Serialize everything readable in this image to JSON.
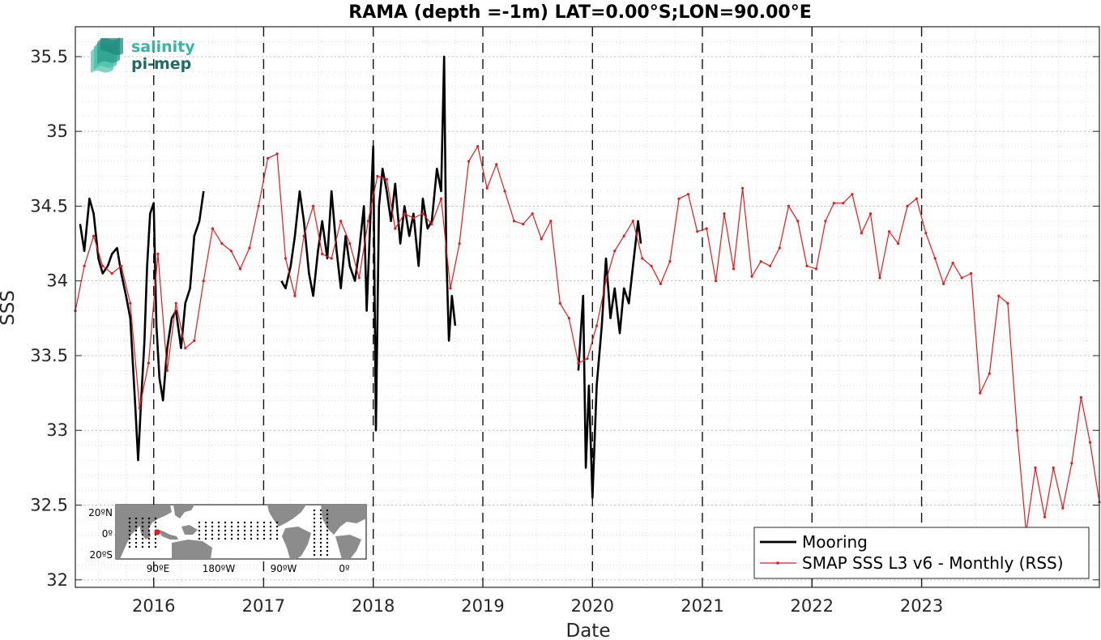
{
  "chart_data": {
    "type": "line",
    "title": "RAMA (depth =-1m) LAT=0.00°S;LON=90.00°E",
    "xlabel": "Date",
    "ylabel": "SSS",
    "xlim": [
      "2015-04-15",
      "2024-08-15"
    ],
    "ylim": [
      31.95,
      35.7
    ],
    "yticks": [
      32,
      32.5,
      33,
      33.5,
      34,
      34.5,
      35,
      35.5
    ],
    "ytick_labels": [
      "32",
      "32.5",
      "33",
      "33.5",
      "34",
      "34.5",
      "35",
      "35.5"
    ],
    "xticks": [
      "2016-01-01",
      "2017-01-01",
      "2018-01-01",
      "2019-01-01",
      "2020-01-01",
      "2021-01-01",
      "2022-01-01",
      "2023-01-01"
    ],
    "xtick_labels": [
      "2016",
      "2017",
      "2018",
      "2019",
      "2020",
      "2021",
      "2022",
      "2023"
    ],
    "year_lines": [
      "2016-01-01",
      "2017-01-01",
      "2018-01-01",
      "2019-01-01",
      "2020-01-01",
      "2021-01-01",
      "2022-01-01",
      "2023-01-01"
    ],
    "grid": true,
    "legend_position": "bottom-right",
    "series": [
      {
        "name": "Mooring",
        "color": "#000000",
        "style": "thick-line",
        "segments": [
          {
            "x": [
              "2015-05-01",
              "2015-05-15",
              "2015-06-01",
              "2015-06-15",
              "2015-07-01",
              "2015-07-15",
              "2015-08-01",
              "2015-08-15",
              "2015-09-01",
              "2015-09-15",
              "2015-10-01",
              "2015-10-15",
              "2015-11-01",
              "2015-11-10",
              "2015-11-20",
              "2015-12-01",
              "2015-12-10",
              "2015-12-20",
              "2016-01-01",
              "2016-01-10",
              "2016-01-20",
              "2016-02-01",
              "2016-02-15",
              "2016-03-01",
              "2016-03-15",
              "2016-04-01",
              "2016-04-15",
              "2016-05-01",
              "2016-05-15",
              "2016-06-01",
              "2016-06-15"
            ],
            "y": [
              34.38,
              34.2,
              34.55,
              34.45,
              34.15,
              34.05,
              34.1,
              34.18,
              34.22,
              34.05,
              33.9,
              33.75,
              33.15,
              32.8,
              33.2,
              33.6,
              34.1,
              34.45,
              34.52,
              33.7,
              33.35,
              33.2,
              33.55,
              33.75,
              33.8,
              33.55,
              33.85,
              33.95,
              34.3,
              34.4,
              34.6
            ]
          },
          {
            "x": [
              "2017-03-01",
              "2017-03-15",
              "2017-04-01",
              "2017-04-15",
              "2017-05-01",
              "2017-05-15",
              "2017-06-01",
              "2017-06-15",
              "2017-07-01",
              "2017-07-15",
              "2017-08-01",
              "2017-08-15",
              "2017-09-01",
              "2017-09-15",
              "2017-10-01",
              "2017-10-15",
              "2017-11-01",
              "2017-11-15",
              "2017-12-01",
              "2017-12-10",
              "2017-12-20",
              "2018-01-01",
              "2018-01-10",
              "2018-01-20",
              "2018-02-01",
              "2018-02-15",
              "2018-03-01",
              "2018-03-15",
              "2018-04-01",
              "2018-04-15",
              "2018-05-01",
              "2018-05-15",
              "2018-06-01",
              "2018-06-15",
              "2018-07-01",
              "2018-07-15",
              "2018-08-01",
              "2018-08-15",
              "2018-08-25",
              "2018-09-01",
              "2018-09-10",
              "2018-09-20",
              "2018-10-01"
            ],
            "y": [
              34.0,
              33.95,
              34.1,
              34.3,
              34.6,
              34.4,
              34.05,
              33.9,
              34.2,
              34.4,
              34.15,
              34.6,
              34.2,
              33.95,
              34.3,
              34.1,
              34.0,
              34.2,
              34.5,
              33.8,
              34.3,
              34.9,
              33.0,
              34.5,
              34.75,
              34.6,
              34.4,
              34.65,
              34.25,
              34.5,
              34.3,
              34.45,
              34.1,
              34.55,
              34.35,
              34.4,
              34.75,
              34.6,
              35.5,
              34.2,
              33.6,
              33.9,
              33.7
            ]
          },
          {
            "x": [
              "2019-11-15",
              "2019-12-01",
              "2019-12-10",
              "2019-12-20",
              "2020-01-01",
              "2020-01-15",
              "2020-02-01",
              "2020-02-15",
              "2020-03-01",
              "2020-03-15",
              "2020-04-01",
              "2020-04-15",
              "2020-05-01",
              "2020-05-15",
              "2020-06-01",
              "2020-06-10"
            ],
            "y": [
              33.4,
              33.9,
              32.75,
              33.3,
              32.55,
              33.3,
              33.7,
              34.15,
              33.75,
              33.95,
              33.65,
              33.95,
              33.85,
              34.1,
              34.4,
              34.25
            ]
          }
        ]
      },
      {
        "name": "SMAP SSS L3 v6 - Monthly (RSS)",
        "color": "#e41a1c",
        "style": "thin-line-with-dots",
        "x": [
          "2015-04-15",
          "2015-05-15",
          "2015-06-15",
          "2015-07-15",
          "2015-08-15",
          "2015-09-15",
          "2015-10-15",
          "2015-11-15",
          "2015-12-15",
          "2016-01-15",
          "2016-02-15",
          "2016-03-15",
          "2016-04-15",
          "2016-05-15",
          "2016-06-15",
          "2016-07-15",
          "2016-08-15",
          "2016-09-15",
          "2016-10-15",
          "2016-11-15",
          "2016-12-15",
          "2017-01-15",
          "2017-02-15",
          "2017-03-15",
          "2017-04-15",
          "2017-05-15",
          "2017-06-15",
          "2017-07-15",
          "2017-08-15",
          "2017-09-15",
          "2017-10-15",
          "2017-11-15",
          "2017-12-15",
          "2018-01-15",
          "2018-02-15",
          "2018-03-15",
          "2018-04-15",
          "2018-05-15",
          "2018-06-15",
          "2018-07-15",
          "2018-08-15",
          "2018-09-15",
          "2018-10-15",
          "2018-11-15",
          "2018-12-15",
          "2019-01-15",
          "2019-02-15",
          "2019-03-15",
          "2019-04-15",
          "2019-05-15",
          "2019-06-15",
          "2019-07-15",
          "2019-08-15",
          "2019-09-15",
          "2019-10-15",
          "2019-11-15",
          "2019-12-15",
          "2020-01-15",
          "2020-02-15",
          "2020-03-15",
          "2020-04-15",
          "2020-05-15",
          "2020-06-15",
          "2020-07-15",
          "2020-08-15",
          "2020-09-15",
          "2020-10-15",
          "2020-11-15",
          "2020-12-15",
          "2021-01-15",
          "2021-02-15",
          "2021-03-15",
          "2021-04-15",
          "2021-05-15",
          "2021-06-15",
          "2021-07-15",
          "2021-08-15",
          "2021-09-15",
          "2021-10-15",
          "2021-11-15",
          "2021-12-15",
          "2022-01-15",
          "2022-02-15",
          "2022-03-15",
          "2022-04-15",
          "2022-05-15",
          "2022-06-15",
          "2022-07-15",
          "2022-08-15",
          "2022-09-15",
          "2022-10-15",
          "2022-11-15",
          "2022-12-15",
          "2023-01-15",
          "2023-02-15",
          "2023-03-15",
          "2023-04-15",
          "2023-05-15",
          "2023-06-15",
          "2023-07-15",
          "2023-08-15",
          "2023-09-15",
          "2023-10-15",
          "2023-11-15",
          "2023-12-15",
          "2024-01-15",
          "2024-02-15",
          "2024-03-15",
          "2024-04-15",
          "2024-05-15",
          "2024-06-15",
          "2024-07-15",
          "2024-08-15"
        ],
        "y": [
          33.8,
          34.1,
          34.3,
          34.1,
          34.05,
          34.1,
          33.85,
          33.15,
          33.45,
          34.18,
          33.4,
          33.85,
          33.55,
          33.6,
          34.0,
          34.35,
          34.25,
          34.2,
          34.08,
          34.22,
          34.5,
          34.82,
          34.85,
          34.15,
          33.9,
          34.3,
          34.5,
          34.18,
          34.15,
          34.4,
          34.25,
          34.02,
          34.4,
          34.7,
          34.68,
          34.35,
          34.45,
          34.42,
          34.45,
          34.38,
          34.55,
          33.95,
          34.25,
          34.8,
          34.9,
          34.62,
          34.78,
          34.6,
          34.4,
          34.38,
          34.45,
          34.28,
          34.4,
          33.85,
          33.75,
          33.45,
          33.48,
          33.7,
          34.0,
          34.2,
          34.3,
          34.4,
          34.15,
          34.1,
          33.98,
          34.13,
          34.55,
          34.58,
          34.33,
          34.35,
          34.0,
          34.45,
          34.08,
          34.62,
          34.03,
          34.13,
          34.1,
          34.22,
          34.5,
          34.4,
          34.1,
          34.08,
          34.4,
          34.52,
          34.52,
          34.58,
          34.32,
          34.45,
          34.02,
          34.33,
          34.25,
          34.5,
          34.55,
          34.32,
          34.15,
          33.98,
          34.12,
          34.02,
          34.05,
          33.25,
          33.38,
          33.9,
          33.85,
          33.0,
          32.32,
          32.75,
          32.42,
          32.75,
          32.48,
          32.78,
          33.22,
          32.92,
          32.52
        ]
      }
    ]
  },
  "logo": {
    "line1": "salinity",
    "line2": "pi-mep"
  },
  "inset_map": {
    "lat_labels": [
      "20ºN",
      "0º",
      "20ºS"
    ],
    "lon_labels": [
      "90ºE",
      "180ºW",
      "90ºW",
      "0º"
    ],
    "colors": {
      "ocean": "#ffffff",
      "land": "#8c8c8c",
      "mooring": "#000000",
      "highlight": "#e41a1c"
    }
  }
}
